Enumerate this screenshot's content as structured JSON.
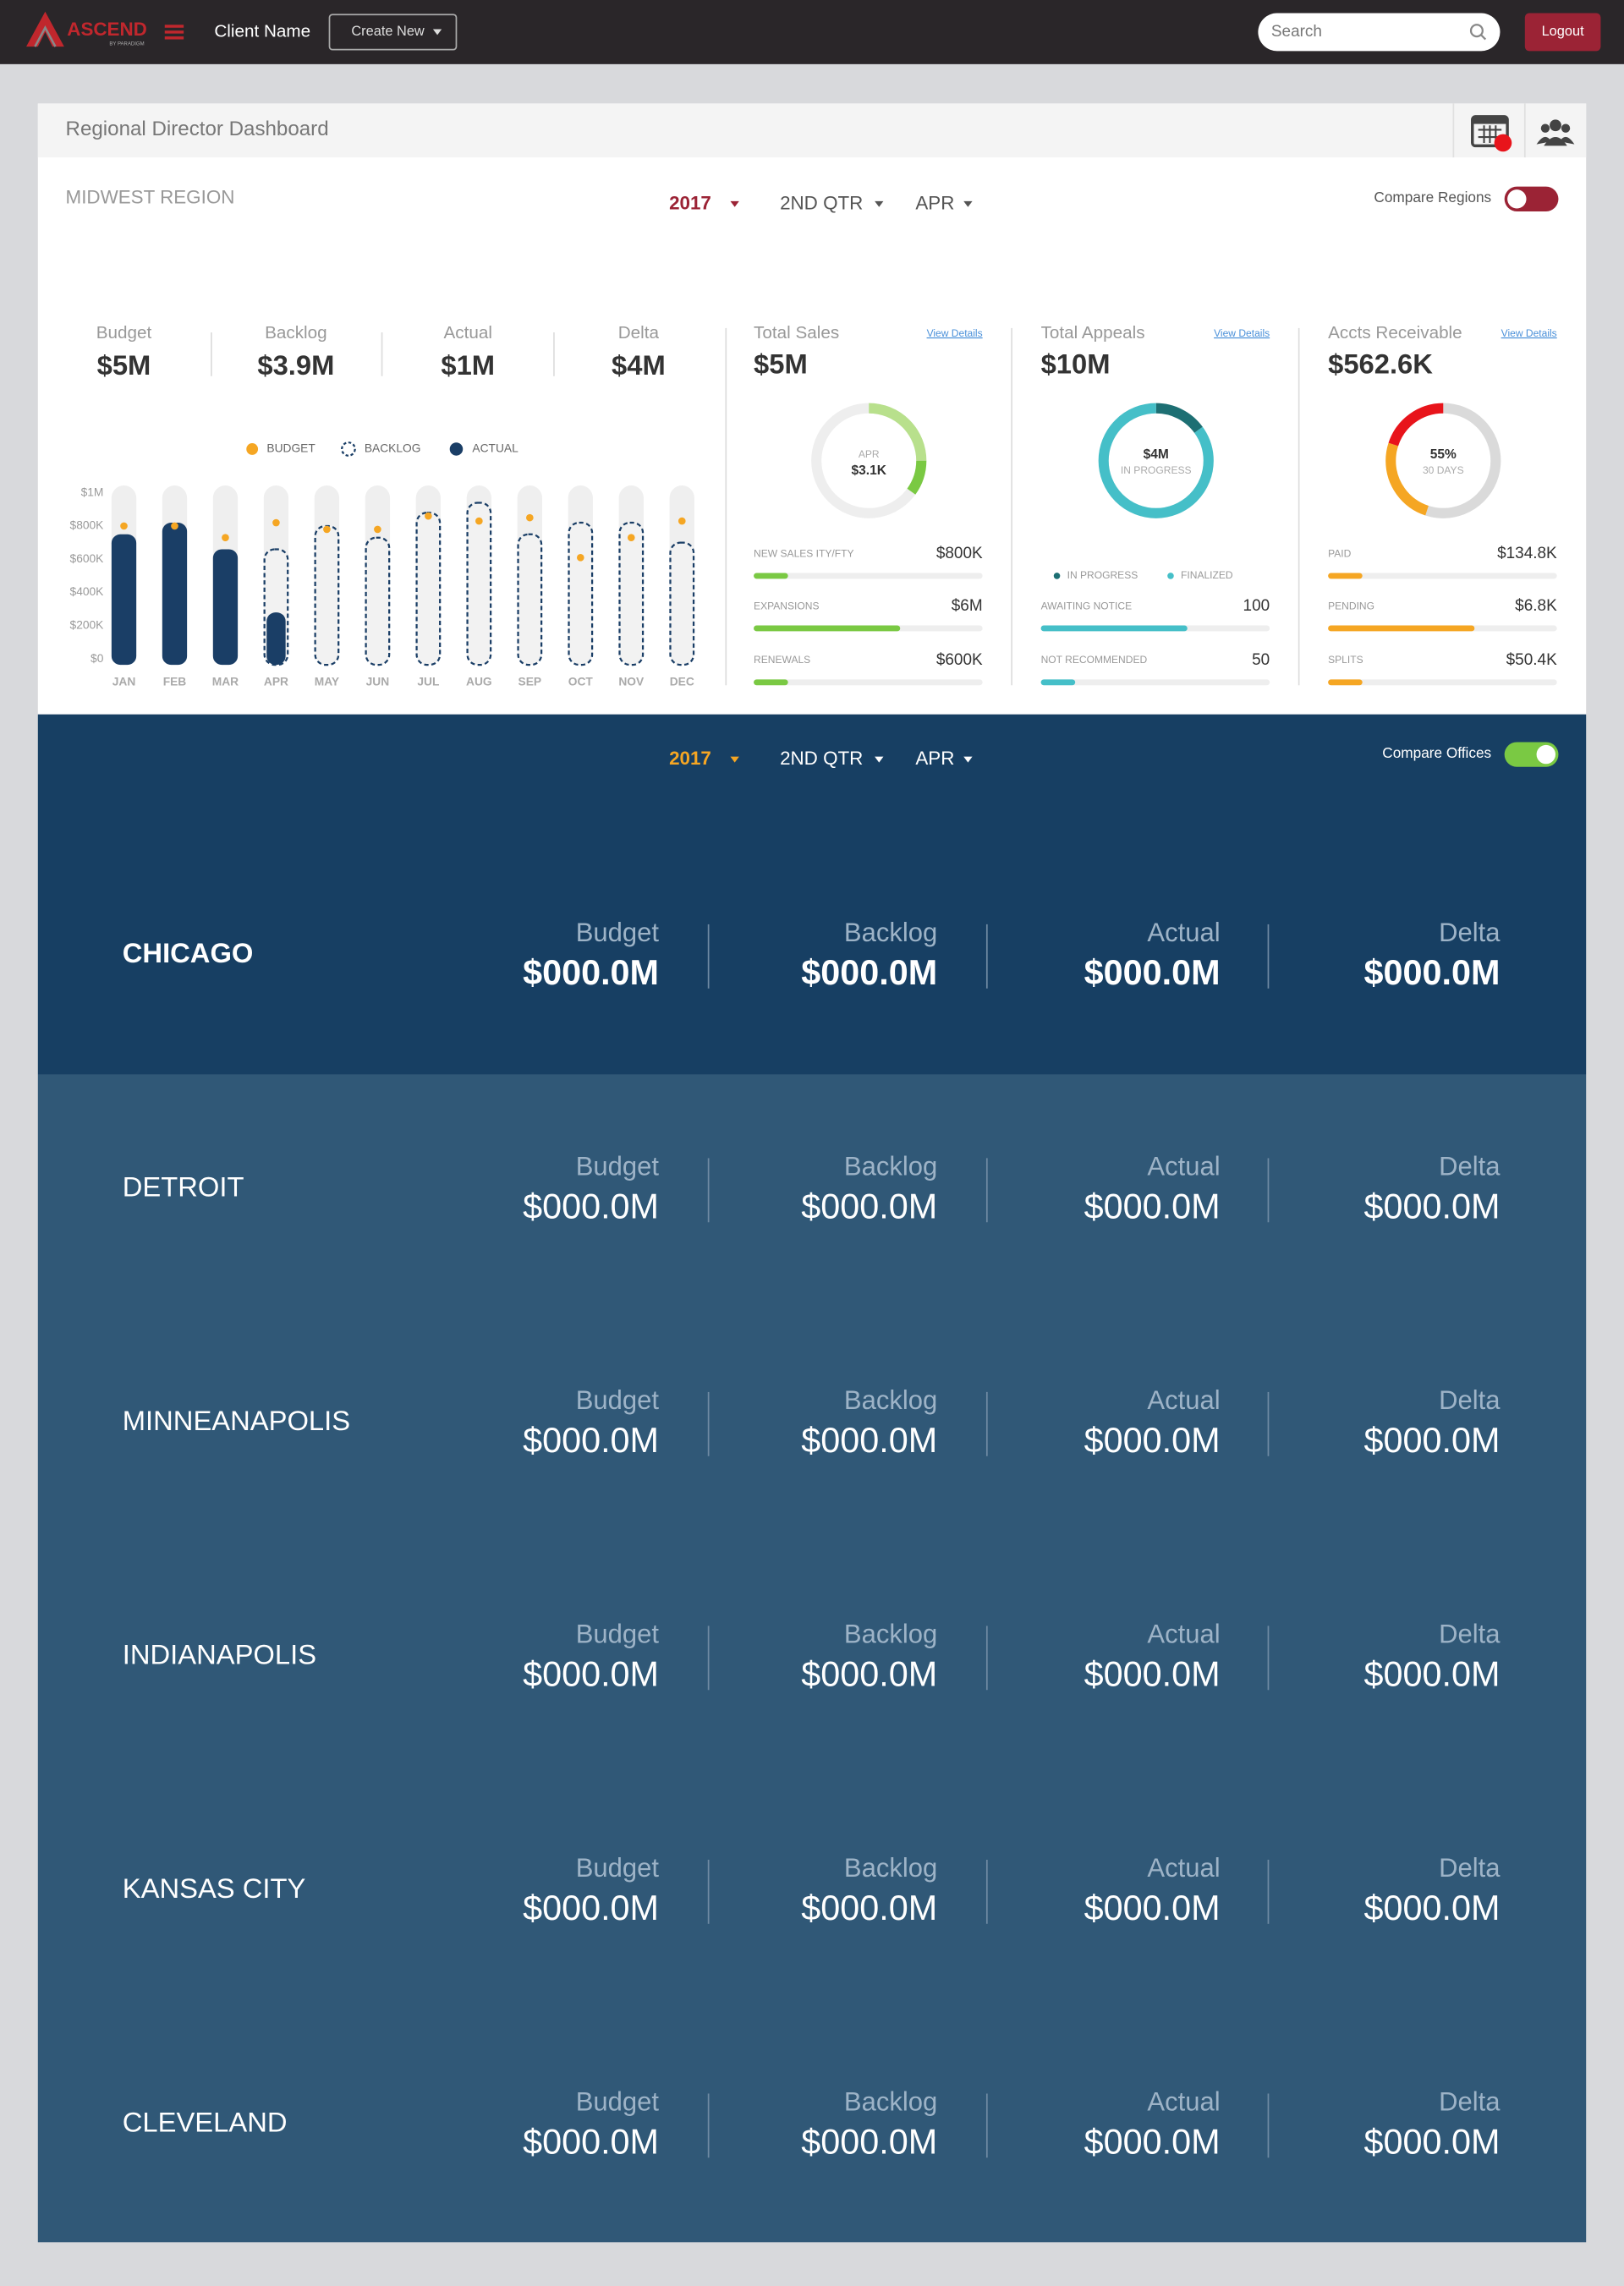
{
  "nav": {
    "logo": "ASCEND",
    "logo_sub": "BY PARADIGM",
    "client": "Client Name",
    "create": "Create New",
    "search": "Search",
    "logout": "Logout"
  },
  "header": {
    "title": "Regional Director Dashboard"
  },
  "region": {
    "name": "MIDWEST REGION",
    "filters": [
      "2017",
      "2ND QTR",
      "APR"
    ],
    "compare": "Compare Regions"
  },
  "kpis": [
    {
      "label": "Budget",
      "value": "$5M"
    },
    {
      "label": "Backlog",
      "value": "$3.9M"
    },
    {
      "label": "Actual",
      "value": "$1M"
    },
    {
      "label": "Delta",
      "value": "$4M"
    }
  ],
  "chart_data": {
    "type": "bar",
    "categories": [
      "JAN",
      "FEB",
      "MAR",
      "APR",
      "MAY",
      "JUN",
      "JUL",
      "AUG",
      "SEP",
      "OCT",
      "NOV",
      "DEC"
    ],
    "series": [
      {
        "name": "BUDGET",
        "color": "#f5a623",
        "values": [
          800000,
          800000,
          730000,
          820000,
          780000,
          780000,
          860000,
          830000,
          850000,
          610000,
          730000,
          830000
        ]
      },
      {
        "name": "BACKLOG",
        "color": "#1a3e66",
        "values": [
          null,
          null,
          null,
          660000,
          800000,
          730000,
          880000,
          940000,
          750000,
          820000,
          820000,
          700000
        ]
      },
      {
        "name": "ACTUAL",
        "color": "#1a3e66",
        "values": [
          750000,
          820000,
          660000,
          280000,
          null,
          null,
          null,
          null,
          null,
          null,
          null,
          null
        ]
      }
    ],
    "ylim": [
      0,
      1000000
    ],
    "yticks": [
      {
        "value": 0,
        "label": "$0"
      },
      {
        "value": 200000,
        "label": "$200K"
      },
      {
        "value": 400000,
        "label": "$400K"
      },
      {
        "value": 600000,
        "label": "$600K"
      },
      {
        "value": 800000,
        "label": "$800K"
      },
      {
        "value": 1000000,
        "label": "$1M"
      }
    ]
  },
  "cards": [
    {
      "title": "Total Sales",
      "link": "View Details",
      "value": "$5M",
      "donut": {
        "labels": [
          "APR",
          "$3.1K"
        ],
        "segments": [
          {
            "color": "#b8e08c",
            "value": 25
          },
          {
            "color": "#7ac943",
            "value": 10
          }
        ]
      },
      "rows": [
        {
          "label": "NEW SALES ITY/FTY",
          "value": "$800K",
          "progress": 15,
          "color": "#7ac943"
        },
        {
          "label": "EXPANSIONS",
          "value": "$6M",
          "progress": 64,
          "color": "#7ac943"
        },
        {
          "label": "RENEWALS",
          "value": "$600K",
          "progress": 15,
          "color": "#7ac943"
        }
      ]
    },
    {
      "title": "Total Appeals",
      "link": "View Details",
      "value": "$10M",
      "donut": {
        "labels": [
          "$4M",
          "IN PROGRESS"
        ],
        "segments": [
          {
            "color": "#1d6f73",
            "value": 15
          },
          {
            "color": "#45bfc8",
            "value": 85
          }
        ]
      },
      "legend": [
        {
          "name": "IN PROGRESS",
          "color": "#1d6f73"
        },
        {
          "name": "FINALIZED",
          "color": "#45bfc8"
        }
      ],
      "rows": [
        {
          "label": "AWAITING NOTICE",
          "value": "100",
          "progress": 64,
          "color": "#45bfc8"
        },
        {
          "label": "NOT RECOMMENDED",
          "value": "50",
          "progress": 15,
          "color": "#45bfc8"
        }
      ]
    },
    {
      "title": "Accts Receivable",
      "link": "View Details",
      "value": "$562.6K",
      "donut": {
        "labels": [
          "55%",
          "30 DAYS"
        ],
        "segments": [
          {
            "color": "#dadada",
            "value": 55
          },
          {
            "color": "#f5a623",
            "value": 25
          },
          {
            "color": "#e8141b",
            "value": 20
          }
        ]
      },
      "rows": [
        {
          "label": "PAID",
          "value": "$134.8K",
          "progress": 15,
          "color": "#f5a623"
        },
        {
          "label": "PENDING",
          "value": "$6.8K",
          "progress": 64,
          "color": "#f5a623"
        },
        {
          "label": "SPLITS",
          "value": "$50.4K",
          "progress": 15,
          "color": "#f5a623"
        }
      ]
    }
  ],
  "offices": {
    "filters": [
      "2017",
      "2ND QTR",
      "APR"
    ],
    "compare": "Compare Offices",
    "metrics": [
      "Budget",
      "Backlog",
      "Actual",
      "Delta"
    ],
    "rows": [
      {
        "name": "CHICAGO",
        "values": [
          "$000.0M",
          "$000.0M",
          "$000.0M",
          "$000.0M"
        ]
      },
      {
        "name": "DETROIT",
        "values": [
          "$000.0M",
          "$000.0M",
          "$000.0M",
          "$000.0M"
        ]
      },
      {
        "name": "MINNEANAPOLIS",
        "values": [
          "$000.0M",
          "$000.0M",
          "$000.0M",
          "$000.0M"
        ]
      },
      {
        "name": "INDIANAPOLIS",
        "values": [
          "$000.0M",
          "$000.0M",
          "$000.0M",
          "$000.0M"
        ]
      },
      {
        "name": "KANSAS CITY",
        "values": [
          "$000.0M",
          "$000.0M",
          "$000.0M",
          "$000.0M"
        ]
      },
      {
        "name": "CLEVELAND",
        "values": [
          "$000.0M",
          "$000.0M",
          "$000.0M",
          "$000.0M"
        ]
      }
    ]
  }
}
